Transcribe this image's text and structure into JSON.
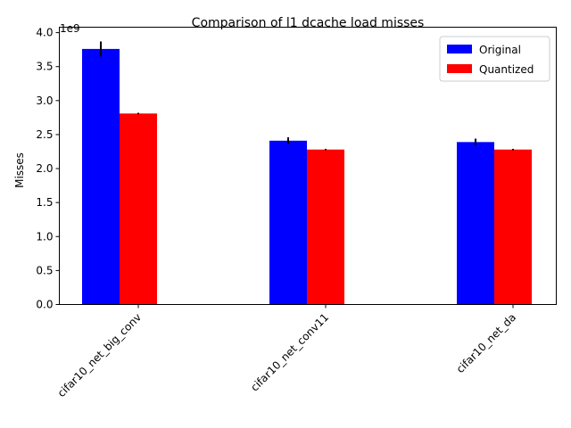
{
  "chart_data": {
    "type": "bar",
    "title": "Comparison of l1 dcache load misses",
    "xlabel": "",
    "ylabel": "Misses",
    "offset_text": "1e9",
    "categories": [
      "cifar10_net_big_conv",
      "cifar10_net_conv11",
      "cifar10_net_da"
    ],
    "series": [
      {
        "name": "Original",
        "color": "#0000ff",
        "values": [
          3.76,
          2.41,
          2.39
        ],
        "errors": [
          0.11,
          0.05,
          0.05
        ]
      },
      {
        "name": "Quantized",
        "color": "#ff0000",
        "values": [
          2.81,
          2.28,
          2.28
        ],
        "errors": [
          0.01,
          0.01,
          0.01
        ]
      }
    ],
    "ylim": [
      0,
      4.08
    ],
    "yticks": [
      "0.0",
      "0.5",
      "1.0",
      "1.5",
      "2.0",
      "2.5",
      "3.0",
      "3.5",
      "4.0"
    ],
    "legend_position": "top-right",
    "grid": false
  }
}
